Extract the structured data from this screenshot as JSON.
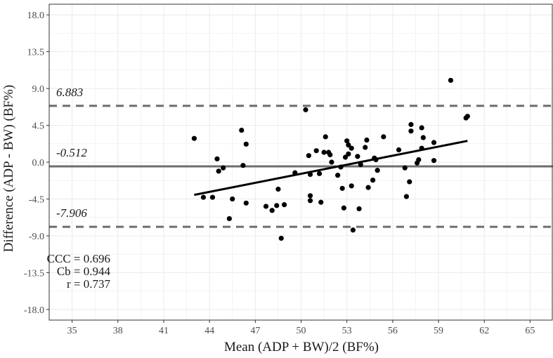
{
  "chart_data": {
    "type": "scatter",
    "xlabel": "Mean (ADP + BW)/2 (BF%)",
    "ylabel": "Difference (ADP - BW) (BF%)",
    "xlim": [
      33.5,
      66.5
    ],
    "ylim": [
      -19.3,
      19.3
    ],
    "x_ticks": [
      "35",
      "38",
      "41",
      "44",
      "47",
      "50",
      "53",
      "56",
      "59",
      "62",
      "65"
    ],
    "y_ticks": [
      "18.0",
      "13.5",
      "9.0",
      "4.5",
      "0.0",
      "-4.5",
      "-9.0",
      "-13.5",
      "-18.0"
    ],
    "grid": true,
    "points": [
      {
        "x": 43.0,
        "y": 2.9
      },
      {
        "x": 43.6,
        "y": -4.3
      },
      {
        "x": 44.2,
        "y": -4.3
      },
      {
        "x": 44.5,
        "y": 0.4
      },
      {
        "x": 44.6,
        "y": -1.1
      },
      {
        "x": 44.9,
        "y": -0.7
      },
      {
        "x": 45.3,
        "y": -6.9
      },
      {
        "x": 45.5,
        "y": -4.5
      },
      {
        "x": 46.1,
        "y": 3.9
      },
      {
        "x": 46.2,
        "y": -0.4
      },
      {
        "x": 46.4,
        "y": 2.2
      },
      {
        "x": 46.4,
        "y": -5.0
      },
      {
        "x": 47.7,
        "y": -5.4
      },
      {
        "x": 48.1,
        "y": -5.9
      },
      {
        "x": 48.4,
        "y": -5.3
      },
      {
        "x": 48.5,
        "y": -3.3
      },
      {
        "x": 48.7,
        "y": -9.3
      },
      {
        "x": 48.9,
        "y": -5.2
      },
      {
        "x": 49.6,
        "y": -1.3
      },
      {
        "x": 50.3,
        "y": 6.4
      },
      {
        "x": 50.5,
        "y": 0.8
      },
      {
        "x": 50.6,
        "y": -1.5
      },
      {
        "x": 50.6,
        "y": -4.1
      },
      {
        "x": 50.6,
        "y": -4.7
      },
      {
        "x": 51.0,
        "y": 1.4
      },
      {
        "x": 51.2,
        "y": -1.4
      },
      {
        "x": 51.3,
        "y": -4.9
      },
      {
        "x": 51.5,
        "y": 1.2
      },
      {
        "x": 51.6,
        "y": 3.1
      },
      {
        "x": 51.8,
        "y": 1.2
      },
      {
        "x": 51.9,
        "y": 0.9
      },
      {
        "x": 52.0,
        "y": 0.0
      },
      {
        "x": 52.4,
        "y": -1.6
      },
      {
        "x": 52.6,
        "y": -0.6
      },
      {
        "x": 52.7,
        "y": -3.2
      },
      {
        "x": 52.8,
        "y": -5.6
      },
      {
        "x": 52.9,
        "y": 0.6
      },
      {
        "x": 53.0,
        "y": 2.6
      },
      {
        "x": 53.1,
        "y": 2.1
      },
      {
        "x": 53.1,
        "y": 1.0
      },
      {
        "x": 53.3,
        "y": -2.9
      },
      {
        "x": 53.3,
        "y": 1.7
      },
      {
        "x": 53.4,
        "y": -8.3
      },
      {
        "x": 53.7,
        "y": 0.7
      },
      {
        "x": 53.8,
        "y": -5.7
      },
      {
        "x": 53.9,
        "y": -0.3
      },
      {
        "x": 54.2,
        "y": 1.8
      },
      {
        "x": 54.3,
        "y": 2.7
      },
      {
        "x": 54.4,
        "y": -3.1
      },
      {
        "x": 54.7,
        "y": -2.2
      },
      {
        "x": 54.8,
        "y": 0.5
      },
      {
        "x": 54.9,
        "y": 0.3
      },
      {
        "x": 55.0,
        "y": -1.0
      },
      {
        "x": 55.4,
        "y": 3.1
      },
      {
        "x": 56.4,
        "y": 1.5
      },
      {
        "x": 56.8,
        "y": -0.7
      },
      {
        "x": 56.9,
        "y": -4.2
      },
      {
        "x": 57.1,
        "y": -2.4
      },
      {
        "x": 57.2,
        "y": 3.8
      },
      {
        "x": 57.2,
        "y": 4.6
      },
      {
        "x": 57.6,
        "y": -0.1
      },
      {
        "x": 57.7,
        "y": 0.3
      },
      {
        "x": 57.9,
        "y": 1.7
      },
      {
        "x": 57.9,
        "y": 4.2
      },
      {
        "x": 58.0,
        "y": 3.0
      },
      {
        "x": 58.7,
        "y": 2.4
      },
      {
        "x": 58.7,
        "y": 0.2
      },
      {
        "x": 59.8,
        "y": 10.0
      },
      {
        "x": 60.8,
        "y": 5.4
      },
      {
        "x": 60.9,
        "y": 5.6
      }
    ],
    "regression_line": {
      "x": [
        43.0,
        60.9
      ],
      "y": [
        -4.0,
        2.6
      ]
    },
    "reference_lines": [
      {
        "y": 6.883,
        "label": "6.883",
        "style": "dashed"
      },
      {
        "y": -0.512,
        "label": "-0.512",
        "style": "solid"
      },
      {
        "y": -7.906,
        "label": "-7.906",
        "style": "dashed"
      }
    ],
    "annotations": [
      "CCC = 0.696",
      "Cb = 0.944",
      "r = 0.737"
    ],
    "colors": {
      "points": "#000000",
      "reference": "#6e6e6e",
      "regression": "#000000",
      "panel_border": "#333333",
      "grid": "#ececec"
    }
  }
}
